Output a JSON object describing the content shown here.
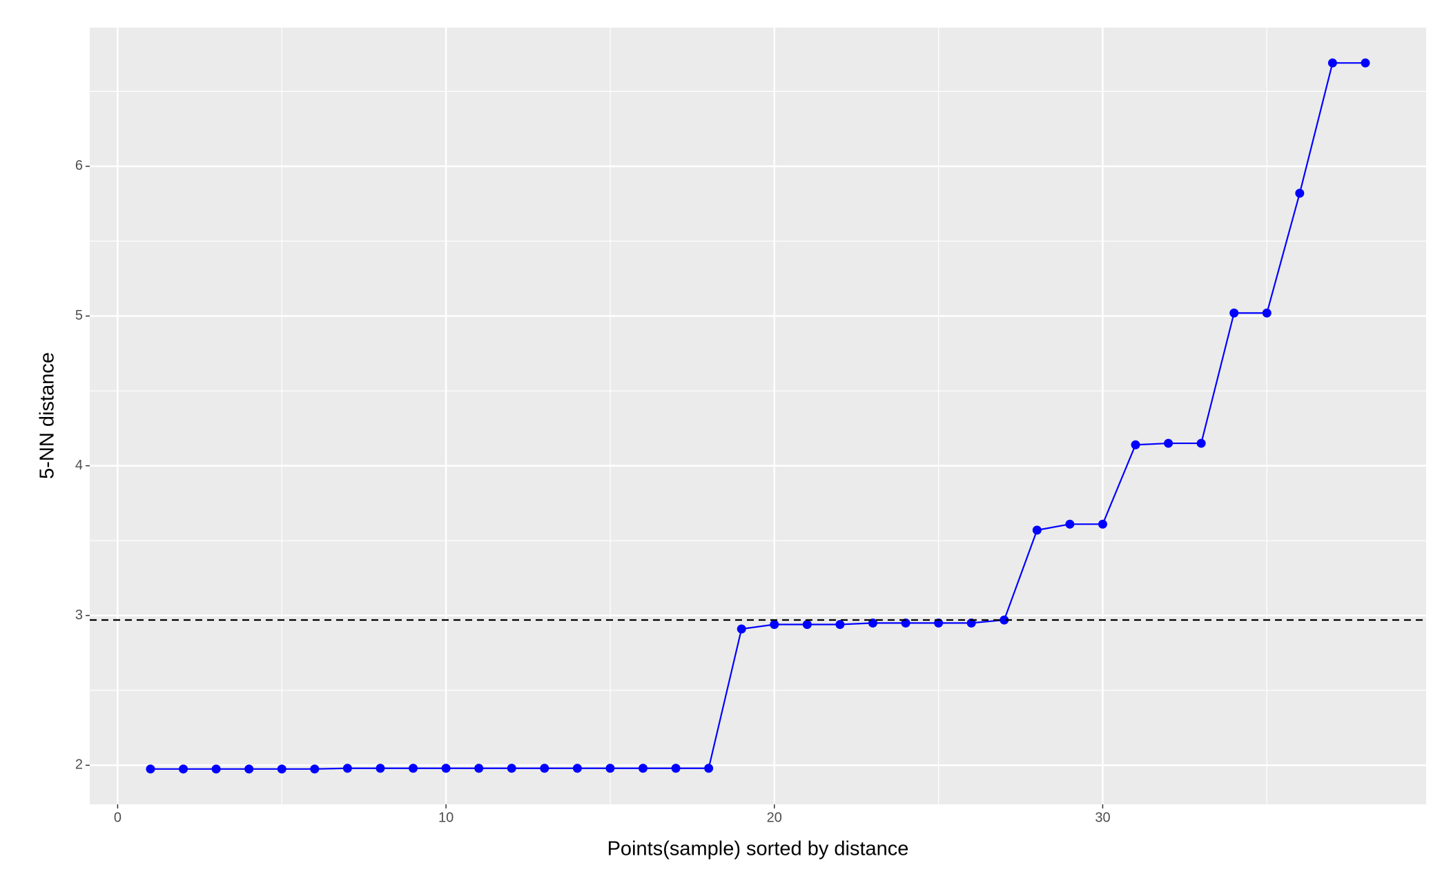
{
  "chart_data": {
    "type": "line",
    "xlabel": "Points(sample) sorted by distance",
    "ylabel": "5-NN distance",
    "x": [
      1,
      2,
      3,
      4,
      5,
      6,
      7,
      8,
      9,
      10,
      11,
      12,
      13,
      14,
      15,
      16,
      17,
      18,
      19,
      20,
      21,
      22,
      23,
      24,
      25,
      26,
      27,
      28,
      29,
      30,
      31,
      32,
      33,
      34,
      35,
      36,
      37,
      38
    ],
    "series": [
      {
        "color": "#0000ff",
        "values": [
          1.975,
          1.975,
          1.975,
          1.975,
          1.975,
          1.975,
          1.98,
          1.98,
          1.98,
          1.98,
          1.98,
          1.98,
          1.98,
          1.98,
          1.98,
          1.98,
          1.98,
          1.98,
          2.91,
          2.94,
          2.94,
          2.94,
          2.95,
          2.95,
          2.95,
          2.95,
          2.97,
          3.57,
          3.61,
          3.61,
          4.14,
          4.15,
          4.15,
          5.02,
          5.02,
          5.82,
          6.69,
          6.69
        ]
      }
    ],
    "hline": 2.97,
    "xlim": [
      -0.85,
      39.85
    ],
    "ylim": [
      1.739,
      6.926
    ],
    "xticks": [
      0,
      10,
      20,
      30
    ],
    "yticks": [
      2,
      3,
      4,
      5,
      6
    ],
    "xminor": [
      5,
      15,
      25,
      35
    ],
    "yminor": [
      2.5,
      3.5,
      4.5,
      5.5,
      6.5
    ],
    "grid": true
  }
}
